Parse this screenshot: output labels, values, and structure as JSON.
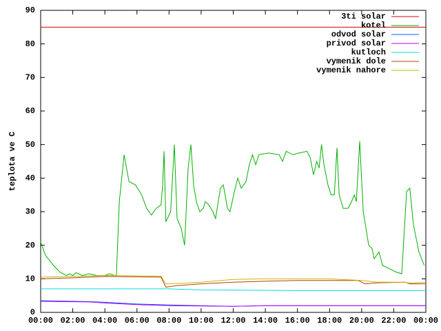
{
  "chart_data": {
    "type": "line",
    "y_label": "teplota ve C",
    "xlim": [
      0,
      24
    ],
    "xticks": [
      {
        "value": 0,
        "label": "00:00"
      },
      {
        "value": 2,
        "label": "02:00"
      },
      {
        "value": 4,
        "label": "04:00"
      },
      {
        "value": 6,
        "label": "06:00"
      },
      {
        "value": 8,
        "label": "08:00"
      },
      {
        "value": 10,
        "label": "10:00"
      },
      {
        "value": 12,
        "label": "12:00"
      },
      {
        "value": 14,
        "label": "14:00"
      },
      {
        "value": 16,
        "label": "16:00"
      },
      {
        "value": 18,
        "label": "18:00"
      },
      {
        "value": 20,
        "label": "20:00"
      },
      {
        "value": 22,
        "label": "22:00"
      },
      {
        "value": 24,
        "label": "00:00"
      }
    ],
    "ylim": [
      0,
      90
    ],
    "yticks": [
      0,
      10,
      20,
      30,
      40,
      50,
      60,
      70,
      80,
      90
    ],
    "grid": false,
    "legend": "top right",
    "series": [
      {
        "name": "3ti solar",
        "color": "#d00000",
        "x": [
          0,
          24
        ],
        "values": [
          85,
          85
        ]
      },
      {
        "name": "kotel",
        "color": "#00b000",
        "x": [
          0,
          0.3,
          0.8,
          1.2,
          1.6,
          1.8,
          2.0,
          2.2,
          2.6,
          3.0,
          3.5,
          4.0,
          4.3,
          4.6,
          4.72,
          4.9,
          5.2,
          5.5,
          5.9,
          6.3,
          6.6,
          6.9,
          7.2,
          7.5,
          7.6,
          7.69,
          7.8,
          8.1,
          8.33,
          8.5,
          8.76,
          8.97,
          9.19,
          9.36,
          9.53,
          9.7,
          9.92,
          10.13,
          10.26,
          10.48,
          10.73,
          10.9,
          11.2,
          11.38,
          11.64,
          11.8,
          12.07,
          12.28,
          12.5,
          12.8,
          13.0,
          13.2,
          13.4,
          13.6,
          14.2,
          14.86,
          15.07,
          15.3,
          15.7,
          16.1,
          16.6,
          16.8,
          17.0,
          17.2,
          17.35,
          17.5,
          17.65,
          17.9,
          18.1,
          18.3,
          18.46,
          18.6,
          18.85,
          19.15,
          19.37,
          19.54,
          19.67,
          19.88,
          20.1,
          20.44,
          20.65,
          20.78,
          21.08,
          21.3,
          21.73,
          22.16,
          22.5,
          22.8,
          23.0,
          23.23,
          23.57,
          23.9
        ],
        "values": [
          21,
          17,
          14,
          12,
          11,
          11.5,
          11,
          11.8,
          11,
          11.5,
          11,
          11,
          11.5,
          11,
          11,
          33,
          47,
          39,
          38,
          35,
          31,
          29,
          31,
          32,
          38,
          48,
          27,
          30,
          50,
          28,
          25,
          20,
          43,
          50,
          38,
          33,
          30,
          31,
          33,
          32,
          30,
          28,
          37,
          38,
          31,
          30,
          36,
          40,
          37,
          39,
          44,
          47,
          44,
          47,
          47.5,
          47,
          45,
          48,
          47,
          47.5,
          48,
          46,
          41,
          45,
          43,
          50,
          44,
          38,
          35,
          35,
          49,
          35,
          31,
          31,
          33,
          35,
          33,
          51,
          30,
          20,
          19,
          16,
          18,
          14,
          13,
          12,
          11.5,
          36,
          37,
          26,
          18,
          14
        ]
      },
      {
        "name": "odvod solar",
        "color": "#0060ff",
        "x": [
          0,
          3,
          4,
          6,
          8,
          10,
          12,
          14,
          20,
          24
        ],
        "values": [
          3.5,
          3.2,
          3,
          2.5,
          2.2,
          2,
          1.8,
          2,
          2,
          2
        ]
      },
      {
        "name": "privod solar",
        "color": "#c000ff",
        "x": [
          0,
          3,
          4,
          6,
          8,
          10,
          12,
          14,
          20,
          24
        ],
        "values": [
          3.3,
          3.1,
          2.8,
          2.3,
          2,
          1.9,
          1.8,
          2,
          2,
          2
        ]
      },
      {
        "name": "kutloch",
        "color": "#00dddd",
        "x": [
          0,
          8,
          10,
          16,
          24
        ],
        "values": [
          7,
          7,
          6.7,
          6.5,
          6.5
        ]
      },
      {
        "name": "vymenik dole",
        "color": "#b04000",
        "x": [
          0,
          2,
          4,
          7.5,
          7.8,
          8.5,
          10,
          12,
          14,
          16,
          19.8,
          20.2,
          21,
          22.7,
          23,
          24
        ],
        "values": [
          10,
          10.3,
          10.7,
          10.5,
          7.5,
          8,
          8.5,
          9,
          9.3,
          9.5,
          9.5,
          8.5,
          8.8,
          9,
          8.5,
          8.5
        ]
      },
      {
        "name": "vymenik nahore",
        "color": "#c8b400",
        "x": [
          0,
          2,
          4,
          7.5,
          7.8,
          9,
          10,
          12,
          14,
          18,
          20,
          21,
          22.7,
          23,
          24
        ],
        "values": [
          10.5,
          10.7,
          11,
          10.8,
          8.5,
          8.7,
          9,
          9.8,
          10,
          10,
          9.5,
          9,
          9,
          8.7,
          9
        ]
      }
    ]
  }
}
